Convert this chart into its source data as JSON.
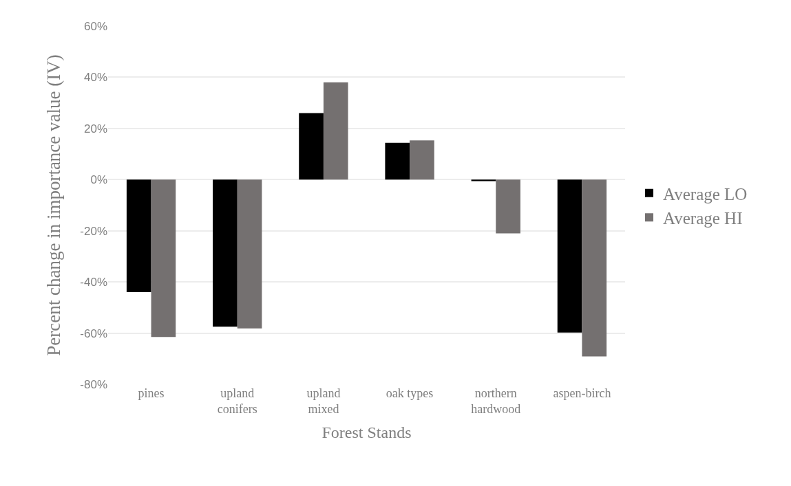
{
  "chart_data": {
    "type": "bar",
    "xlabel": "Forest Stands",
    "ylabel": "Percent change in importance value (IV)",
    "categories": [
      "pines",
      "upland conifers",
      "upland mixed",
      "oak types",
      "northern hardwood",
      "aspen-birch"
    ],
    "series": [
      {
        "name": "Average LO",
        "color": "#000000",
        "values": [
          -44,
          -57.5,
          26,
          14.4,
          -0.6,
          -59.8
        ]
      },
      {
        "name": "Average HI",
        "color": "#747070",
        "values": [
          -61.5,
          -58.2,
          38,
          15.3,
          -21,
          -69.1
        ]
      }
    ],
    "ylim": [
      -80,
      60
    ],
    "yticks": [
      {
        "value": -80,
        "label": "-80%"
      },
      {
        "value": -60,
        "label": "-60%"
      },
      {
        "value": -40,
        "label": "-40%"
      },
      {
        "value": -20,
        "label": "-20%"
      },
      {
        "value": 0,
        "label": "0%"
      },
      {
        "value": 20,
        "label": "20%"
      },
      {
        "value": 40,
        "label": "40%"
      },
      {
        "value": 60,
        "label": "60%"
      }
    ],
    "grid": "y",
    "legend": "right"
  }
}
